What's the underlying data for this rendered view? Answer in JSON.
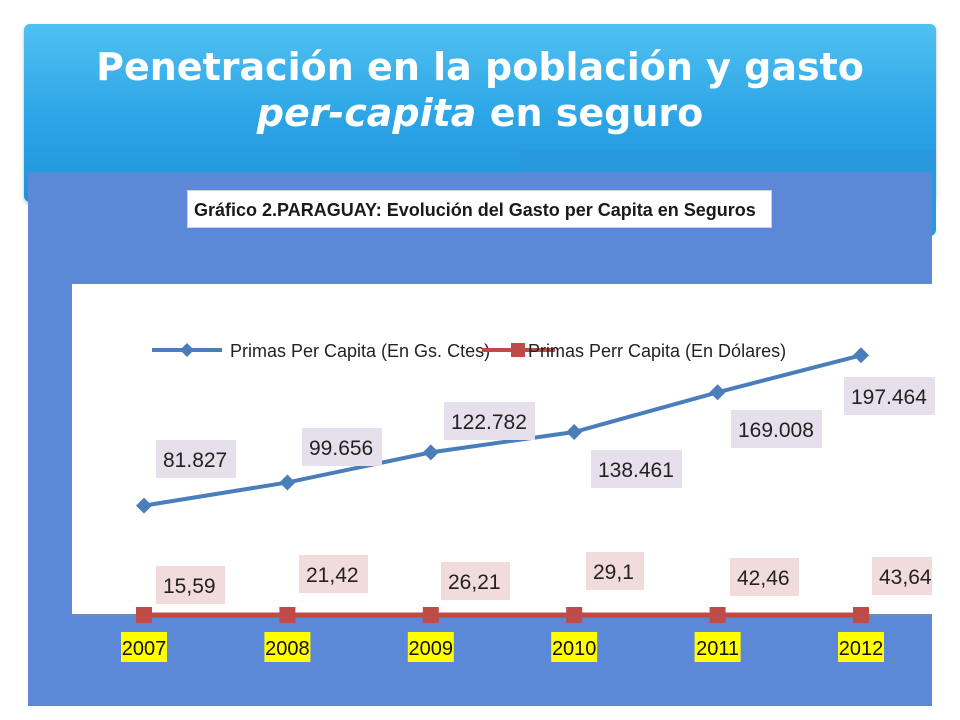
{
  "slide": {
    "title_line1": "Penetración en la población y gasto",
    "title_line2_italic": "per-capita",
    "title_line2_rest": "en seguro"
  },
  "colors": {
    "header": "#2ba4e6",
    "panel": "#5b89d8",
    "series_gs": "#4a7ebb",
    "series_usd": "#be4b48",
    "label_gs_bg": "#e6e0ec",
    "label_usd_bg": "#f2dcdb",
    "year_highlight": "#ffff00"
  },
  "chart_data": {
    "type": "line",
    "title": "Gráfico 2.PARAGUAY: Evolución del Gasto per Capita en Seguros",
    "categories": [
      "2007",
      "2008",
      "2009",
      "2010",
      "2011",
      "2012"
    ],
    "series": [
      {
        "name": "Primas Per Capita (En Gs. Ctes)",
        "values": [
          81827,
          99656,
          122782,
          138461,
          169008,
          197464
        ],
        "labels": [
          "81.827",
          "99.656",
          "122.782",
          "138.461",
          "169.008",
          "197.464"
        ]
      },
      {
        "name": "Primas Perr Capita (En Dólares)",
        "values": [
          15.59,
          21.42,
          26.21,
          29.1,
          42.46,
          43.64
        ],
        "labels": [
          "15,59",
          "21,42",
          "26,21",
          "29,1",
          "42,46",
          "43,64"
        ]
      }
    ],
    "legend_position": "top",
    "grid": false
  }
}
